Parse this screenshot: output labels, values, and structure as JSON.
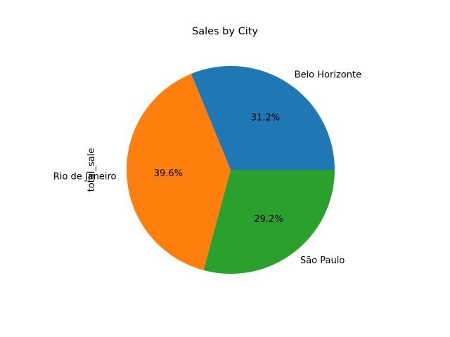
{
  "chart_data": {
    "type": "pie",
    "title": "Sales by City",
    "ylabel": "total_sale",
    "categories": [
      "Belo Horizonte",
      "Rio de Janeiro",
      "São Paulo"
    ],
    "values": [
      31.2,
      39.6,
      29.2
    ],
    "percent_labels": [
      "31.2%",
      "39.6%",
      "29.2%"
    ],
    "colors": [
      "#1f77b4",
      "#ff7f0e",
      "#2ca02c"
    ],
    "start_angle": 0,
    "direction": "counterclockwise",
    "legend": "none"
  }
}
